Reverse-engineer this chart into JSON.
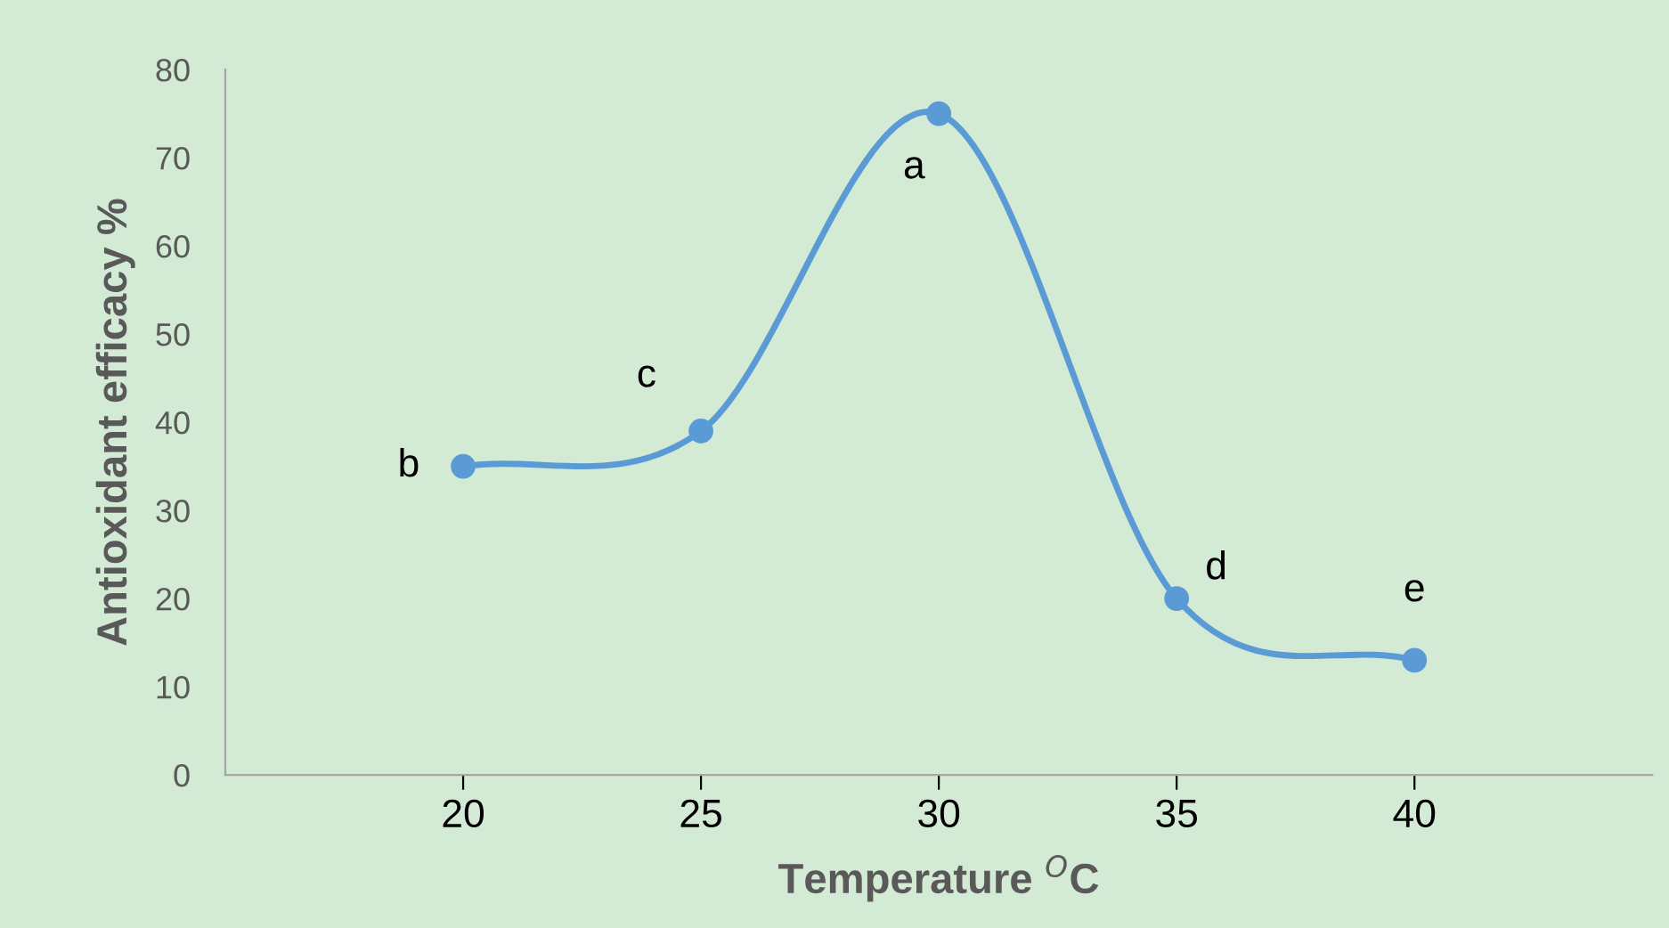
{
  "chart_data": {
    "type": "line",
    "xlabel": "Temperature $^{O}$C",
    "ylabel": "Antioxidant efficacy %",
    "x": [
      20,
      25,
      30,
      35,
      40
    ],
    "series": [
      {
        "color": "#5b9bd5",
        "values": [
          35,
          39,
          75,
          20,
          13
        ]
      }
    ],
    "xlim": [
      15,
      45
    ],
    "xticks": [
      20,
      25,
      30,
      35,
      40
    ],
    "ylim": [
      0,
      80
    ],
    "yticks": [
      0,
      10,
      20,
      30,
      40,
      50,
      60,
      70,
      80
    ],
    "marker": "circle",
    "line_style": "solid",
    "grid": false,
    "legend": false,
    "annotations": [
      {
        "text": "b",
        "x": 20,
        "y": 35
      },
      {
        "text": "c",
        "x": 25,
        "y": 39
      },
      {
        "text": "a",
        "x": 30,
        "y": 75
      },
      {
        "text": "d",
        "x": 35,
        "y": 20
      },
      {
        "text": "e",
        "x": 40,
        "y": 13
      }
    ]
  }
}
